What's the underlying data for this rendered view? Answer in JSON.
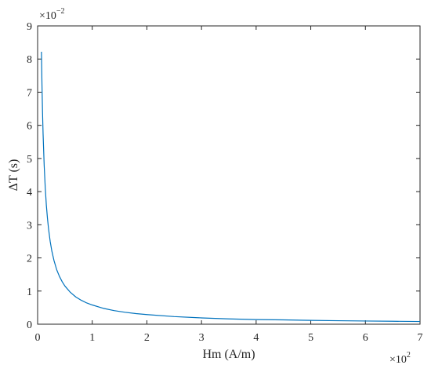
{
  "chart_data": {
    "type": "line",
    "title": "",
    "xlabel": "Hm (A/m)",
    "ylabel": "ΔT (s)",
    "x_multiplier": {
      "base": "×10",
      "exponent": "2"
    },
    "y_multiplier": {
      "base": "×10",
      "exponent": "−2"
    },
    "xlim": [
      0,
      7
    ],
    "ylim": [
      0,
      9
    ],
    "xticks": [
      0,
      1,
      2,
      3,
      4,
      5,
      6,
      7
    ],
    "yticks": [
      0,
      1,
      2,
      3,
      4,
      5,
      6,
      7,
      8,
      9
    ],
    "xtick_labels": [
      "0",
      "1",
      "2",
      "3",
      "4",
      "5",
      "6",
      "7"
    ],
    "ytick_labels": [
      "0",
      "1",
      "2",
      "3",
      "4",
      "5",
      "6",
      "7",
      "8",
      "9"
    ],
    "grid": false,
    "line_color": "#0072BD",
    "series": [
      {
        "x": [
          0.07,
          0.08,
          0.09,
          0.1,
          0.12,
          0.14,
          0.16,
          0.18,
          0.2,
          0.23,
          0.26,
          0.3,
          0.35,
          0.4,
          0.45,
          0.5,
          0.6,
          0.7,
          0.8,
          0.9,
          1.0,
          1.2,
          1.4,
          1.6,
          1.8,
          2.0,
          2.5,
          3.0,
          3.5,
          4.0,
          4.5,
          5.0,
          5.5,
          6.0,
          6.5,
          7.0
        ],
        "y": [
          8.22,
          7.2,
          6.4,
          5.75,
          4.79,
          4.11,
          3.59,
          3.2,
          2.88,
          2.5,
          2.21,
          1.92,
          1.64,
          1.44,
          1.28,
          1.15,
          0.96,
          0.82,
          0.72,
          0.64,
          0.58,
          0.48,
          0.41,
          0.36,
          0.32,
          0.29,
          0.23,
          0.19,
          0.16,
          0.14,
          0.13,
          0.115,
          0.105,
          0.096,
          0.088,
          0.082
        ]
      }
    ]
  }
}
